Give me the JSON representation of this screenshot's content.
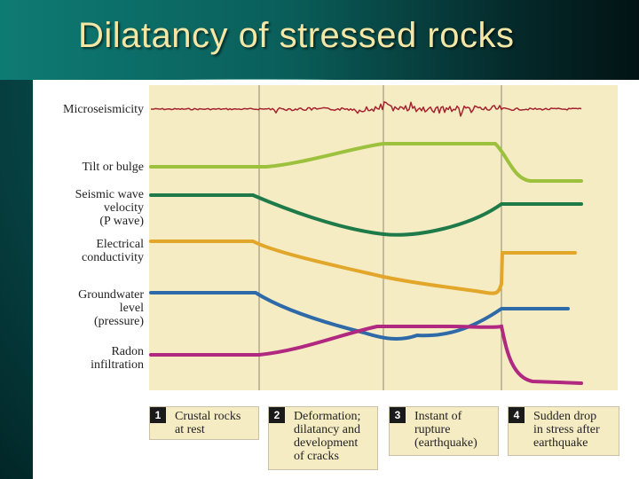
{
  "slide": {
    "title": "Dilatancy of stressed rocks"
  },
  "rows": [
    {
      "label": "Microseismicity",
      "color": "#a3232e"
    },
    {
      "label": "Tilt or bulge",
      "color": "#9cc13c"
    },
    {
      "label": "Seismic wave\nvelocity\n(P wave)",
      "color": "#1f7a4a"
    },
    {
      "label": "Electrical\nconductivity",
      "color": "#e2a62a"
    },
    {
      "label": "Groundwater\nlevel\n(pressure)",
      "color": "#2f6aa8"
    },
    {
      "label": "Radon\ninfiltration",
      "color": "#b0287f"
    }
  ],
  "phases": [
    {
      "number": "1",
      "text": "Crustal rocks\nat rest"
    },
    {
      "number": "2",
      "text": "Deformation;\ndilatancy and\ndevelopment\nof cracks"
    },
    {
      "number": "3",
      "text": "Instant of\nrupture\n(earthquake)"
    },
    {
      "number": "4",
      "text": "Sudden drop\nin stress after\nearthquake"
    }
  ],
  "colors": {
    "background": "#0a5a59",
    "title": "#f4e7a6",
    "plot_bg": "#f6ecc4"
  }
}
